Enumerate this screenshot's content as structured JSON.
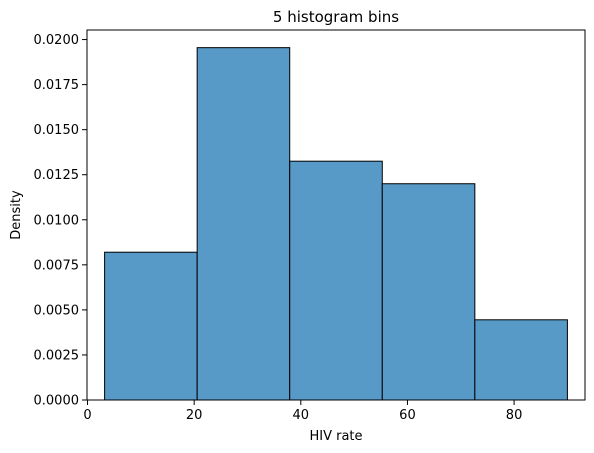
{
  "chart_data": {
    "type": "bar",
    "title": "5 histogram bins",
    "xlabel": "HIV rate",
    "ylabel": "Density",
    "bins": [
      {
        "left": 3.2,
        "right": 20.56,
        "density": 0.0082
      },
      {
        "left": 20.56,
        "right": 37.92,
        "density": 0.01955
      },
      {
        "left": 37.92,
        "right": 55.28,
        "density": 0.01325
      },
      {
        "left": 55.28,
        "right": 72.64,
        "density": 0.012
      },
      {
        "left": 72.64,
        "right": 90.0,
        "density": 0.00445
      }
    ],
    "xlim": [
      -0.1,
      93.3
    ],
    "ylim": [
      0,
      0.02053
    ],
    "xticks": [
      0,
      20,
      40,
      60,
      80
    ],
    "xtick_labels": [
      "0",
      "20",
      "40",
      "60",
      "80"
    ],
    "yticks": [
      0,
      0.0025,
      0.005,
      0.0075,
      0.01,
      0.0125,
      0.015,
      0.0175,
      0.02
    ],
    "ytick_labels": [
      "0.0000",
      "0.0025",
      "0.0050",
      "0.0075",
      "0.0100",
      "0.0125",
      "0.0150",
      "0.0175",
      "0.0200"
    ],
    "grid": false,
    "colors": {
      "bar_fill": "#5799c7",
      "bar_edge": "#000000",
      "axes": "#000000"
    }
  }
}
